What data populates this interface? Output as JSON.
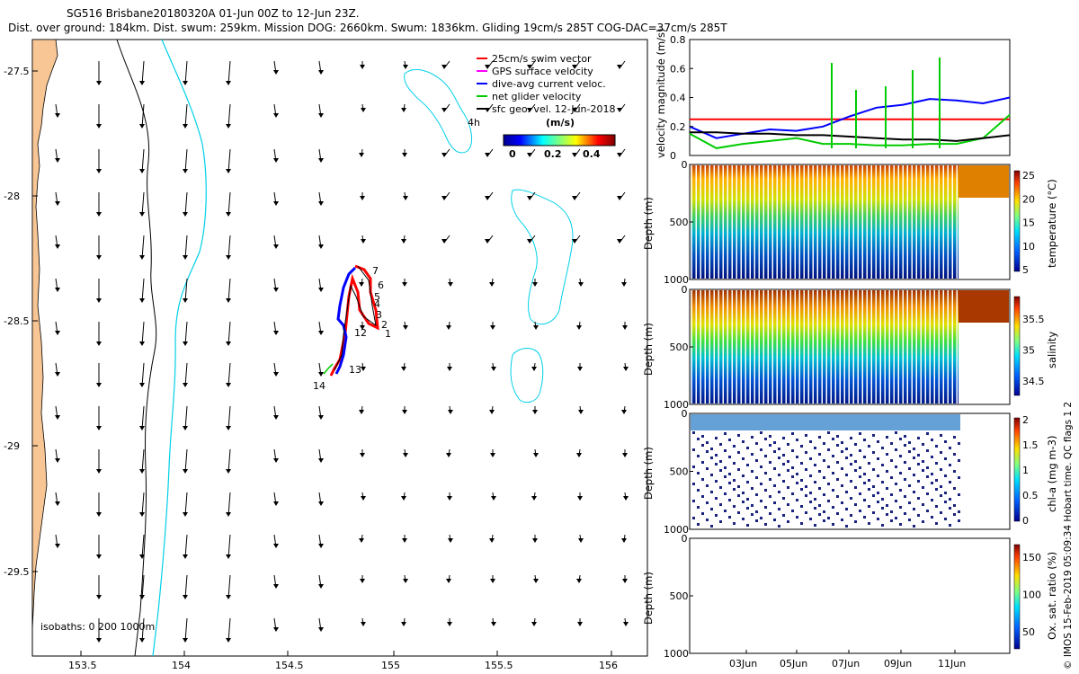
{
  "header": {
    "line1": "SG516 Brisbane20180320A 01-Jun 00Z to 12-Jun 23Z.",
    "line2": "Dist. over ground: 184km. Dist. swum: 259km. Mission DOG: 2660km. Swum: 1836km. Gliding 19cm/s 285T COG-DAC=37cm/s 285T"
  },
  "map": {
    "xticks": [
      "153.5",
      "154",
      "154.5",
      "155",
      "155.5",
      "156"
    ],
    "yticks": [
      "-27.5",
      "-28",
      "-28.5",
      "-29",
      "-29.5"
    ],
    "isobaths_label": "isobaths: 0   200  1000m",
    "eddy_label": "4h",
    "glider_labels": [
      "1",
      "2",
      "3",
      "4",
      "5",
      "6",
      "7",
      "12",
      "13",
      "14"
    ],
    "legend": [
      {
        "label": "25cm/s swim vector",
        "color": "#ff0000"
      },
      {
        "label": "GPS surface velocity",
        "color": "#ff00ff"
      },
      {
        "label": "dive-avg current veloc.",
        "color": "#0000ff"
      },
      {
        "label": "net glider velocity",
        "color": "#00cc00"
      },
      {
        "label": "sfc geo. vel. 12-Jun-2018",
        "color": "#000000"
      }
    ],
    "colorbar": {
      "title": "(m/s)",
      "ticks": [
        "0",
        "0.2",
        "0.4"
      ]
    }
  },
  "chart_data": [
    {
      "type": "line",
      "title": "velocity magnitude",
      "ylabel": "velocity magnitude (m/s)",
      "ylim": [
        0,
        0.8
      ],
      "yticks": [
        "0",
        "0.2",
        "0.4",
        "0.6",
        "0.8"
      ],
      "x": [
        1,
        2,
        3,
        4,
        5,
        6,
        7,
        8,
        9,
        10,
        11,
        12,
        13
      ],
      "series": [
        {
          "name": "25cm/s swim vector",
          "color": "#ff0000",
          "values": [
            0.25,
            0.25,
            0.25,
            0.25,
            0.25,
            0.25,
            0.25,
            0.25,
            0.25,
            0.25,
            0.25,
            0.25,
            0.25
          ]
        },
        {
          "name": "dive-avg current veloc.",
          "color": "#0000ff",
          "values": [
            0.2,
            0.12,
            0.15,
            0.18,
            0.17,
            0.2,
            0.27,
            0.33,
            0.35,
            0.39,
            0.38,
            0.36,
            0.4
          ]
        },
        {
          "name": "net glider velocity",
          "color": "#00cc00",
          "values": [
            0.15,
            0.05,
            0.08,
            0.1,
            0.12,
            0.08,
            0.08,
            0.07,
            0.07,
            0.08,
            0.08,
            0.12,
            0.28
          ]
        },
        {
          "name": "sfc geo. vel.",
          "color": "#000000",
          "values": [
            0.16,
            0.16,
            0.15,
            0.15,
            0.14,
            0.14,
            0.13,
            0.12,
            0.11,
            0.11,
            0.1,
            0.12,
            0.14
          ]
        }
      ]
    },
    {
      "type": "heatmap",
      "variable": "temperature",
      "ylabel": "Depth (m)",
      "cblabel": "temperature (°C)",
      "cbticks": [
        "25",
        "20",
        "15",
        "10",
        "5"
      ],
      "depth_range": [
        0,
        1000
      ],
      "yticks": [
        "0",
        "500",
        "1000"
      ]
    },
    {
      "type": "heatmap",
      "variable": "salinity",
      "ylabel": "Depth (m)",
      "cblabel": "salinity",
      "cbticks": [
        "35.5",
        "35",
        "34.5"
      ],
      "depth_range": [
        0,
        1000
      ],
      "yticks": [
        "0",
        "500",
        "1000"
      ]
    },
    {
      "type": "scatter",
      "variable": "chl-a",
      "ylabel": "Depth (m)",
      "cblabel": "chl-a (mg m-3)",
      "cbticks": [
        "2",
        "1.5",
        "1",
        "0.5",
        "0"
      ],
      "depth_range": [
        0,
        1000
      ],
      "yticks": [
        "0",
        "500",
        "1000"
      ]
    },
    {
      "type": "heatmap",
      "variable": "oxygen",
      "ylabel": "Depth (m)",
      "cblabel": "Ox. sat. ratio (%)",
      "cbticks": [
        "150",
        "100",
        "50"
      ],
      "depth_range": [
        0,
        1000
      ],
      "yticks": [
        "0",
        "500",
        "1000"
      ],
      "xticks": [
        "03Jun",
        "05Jun",
        "07Jun",
        "09Jun",
        "11Jun"
      ]
    }
  ],
  "footer": {
    "credit": "© IMOS 15-Feb-2019 05:09:34 Hobart time. QC flags 1  2"
  }
}
